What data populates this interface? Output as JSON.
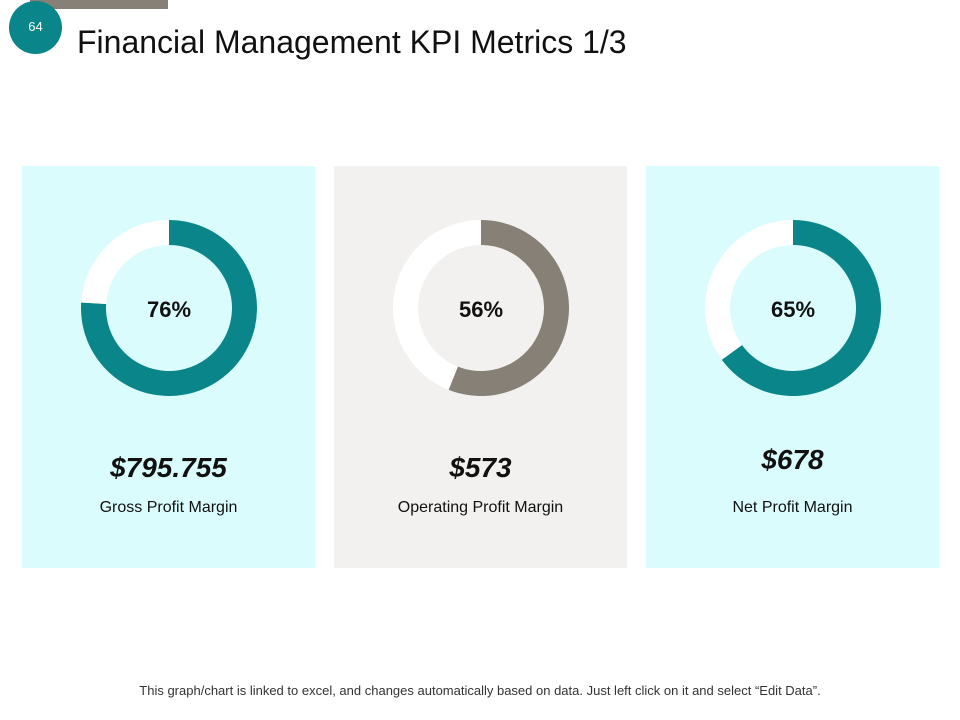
{
  "slide": {
    "page_number": "64",
    "title": "Financial Management KPI Metrics 1/3",
    "footer": "This graph/chart is linked to excel, and changes automatically  based on data. Just left click on it and select “Edit Data”."
  },
  "colors": {
    "teal": "#0a858a",
    "taupe": "#878076",
    "light_cyan": "#dbfcfd",
    "light_gray": "#f2f1ef",
    "track": "#ffffff"
  },
  "cards": [
    {
      "percent_label": "76%",
      "value": "$795.755",
      "name": "Gross Profit Margin"
    },
    {
      "percent_label": "56%",
      "value": "$573",
      "name": "Operating Profit Margin"
    },
    {
      "percent_label": "65%",
      "value": "$678",
      "name": "Net Profit Margin"
    }
  ],
  "chart_data": [
    {
      "type": "pie",
      "variant": "donut",
      "title": "Gross Profit Margin",
      "values": [
        76,
        24
      ],
      "labels": [
        "76%",
        ""
      ],
      "colors": [
        "#0a858a",
        "#ffffff"
      ]
    },
    {
      "type": "pie",
      "variant": "donut",
      "title": "Operating Profit Margin",
      "values": [
        56,
        44
      ],
      "labels": [
        "56%",
        ""
      ],
      "colors": [
        "#878076",
        "#ffffff"
      ]
    },
    {
      "type": "pie",
      "variant": "donut",
      "title": "Net Profit Margin",
      "values": [
        65,
        35
      ],
      "labels": [
        "65%",
        ""
      ],
      "colors": [
        "#0a858a",
        "#ffffff"
      ]
    }
  ]
}
